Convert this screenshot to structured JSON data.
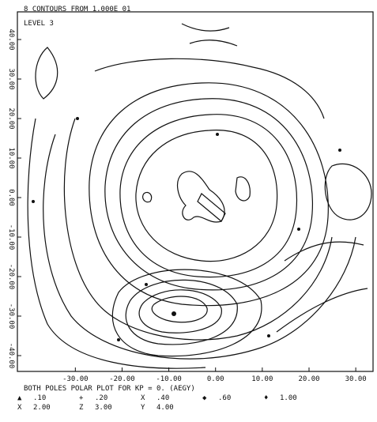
{
  "chart_data": {
    "type": "contour",
    "title": "8 CONTOURS  FROM   1.000E 01",
    "subtitle": "LEVEL   3",
    "xlim": [
      -42.4,
      33.7
    ],
    "ylim": [
      -44,
      47
    ],
    "xticks": [
      {
        "value": -30,
        "label": "-30.00"
      },
      {
        "value": -20,
        "label": "-20.00"
      },
      {
        "value": -10,
        "label": "-10.00"
      },
      {
        "value": 0,
        "label": "0.00"
      },
      {
        "value": 10,
        "label": "10.00"
      },
      {
        "value": 20,
        "label": "20.00"
      },
      {
        "value": 30,
        "label": "30.00"
      }
    ],
    "yticks": [
      {
        "value": 40,
        "label": "40.00"
      },
      {
        "value": 30,
        "label": "30.00"
      },
      {
        "value": 20,
        "label": "20.00"
      },
      {
        "value": 10,
        "label": "10.00"
      },
      {
        "value": 0,
        "label": "0.00"
      },
      {
        "value": -10,
        "label": "-10.00"
      },
      {
        "value": -20,
        "label": "-20.00"
      },
      {
        "value": -30,
        "label": "-30.00"
      },
      {
        "value": -40,
        "label": "-40.00"
      }
    ],
    "caption": "BOTH POLES   POLAR PLOT FOR KP =  0.   (AEGY)",
    "legend": [
      [
        {
          "symbol": "▲",
          "label": ".10"
        },
        {
          "symbol": "+",
          "label": ".20"
        },
        {
          "symbol": "X",
          "label": ".40"
        },
        {
          "symbol": "◆",
          "label": ".60"
        },
        {
          "symbol": "♦",
          "label": "1.00"
        }
      ],
      [
        {
          "symbol": "X",
          "label": "2.00"
        },
        {
          "symbol": "Z",
          "label": "3.00"
        },
        {
          "symbol": "Y",
          "label": "4.00"
        }
      ]
    ]
  }
}
